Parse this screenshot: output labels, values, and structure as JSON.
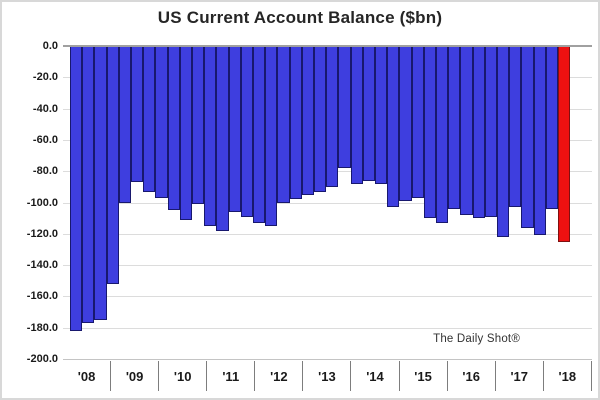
{
  "chart_data": {
    "type": "bar",
    "title": "US Current Account Balance ($bn)",
    "unit": "$bn",
    "annotation": "The Daily Shot®",
    "x_year_labels": [
      "'08",
      "'09",
      "'10",
      "'11",
      "'12",
      "'13",
      "'14",
      "'15",
      "'16",
      "'17",
      "'18"
    ],
    "categories": [
      "2008 Q1",
      "2008 Q2",
      "2008 Q3",
      "2008 Q4",
      "2009 Q1",
      "2009 Q2",
      "2009 Q3",
      "2009 Q4",
      "2010 Q1",
      "2010 Q2",
      "2010 Q3",
      "2010 Q4",
      "2011 Q1",
      "2011 Q2",
      "2011 Q3",
      "2011 Q4",
      "2012 Q1",
      "2012 Q2",
      "2012 Q3",
      "2012 Q4",
      "2013 Q1",
      "2013 Q2",
      "2013 Q3",
      "2013 Q4",
      "2014 Q1",
      "2014 Q2",
      "2014 Q3",
      "2014 Q4",
      "2015 Q1",
      "2015 Q2",
      "2015 Q3",
      "2015 Q4",
      "2016 Q1",
      "2016 Q2",
      "2016 Q3",
      "2016 Q4",
      "2017 Q1",
      "2017 Q2",
      "2017 Q3",
      "2017 Q4",
      "2018 Q1"
    ],
    "values": [
      -182,
      -177,
      -175,
      -152,
      -100,
      -87,
      -93,
      -97,
      -105,
      -111,
      -101,
      -115,
      -118,
      -106,
      -109,
      -113,
      -115,
      -100,
      -98,
      -95,
      -93,
      -90,
      -78,
      -88,
      -86,
      -88,
      -103,
      -99,
      -97,
      -110,
      -113,
      -104,
      -108,
      -110,
      -109,
      -122,
      -103,
      -116,
      -121,
      -104,
      -125
    ],
    "highlight_last_bar": true,
    "ylim": [
      -200,
      0
    ],
    "y_ticks": [
      "0.0",
      "-20.0",
      "-40.0",
      "-60.0",
      "-80.0",
      "-100.0",
      "-120.0",
      "-140.0",
      "-160.0",
      "-180.0",
      "-200.0"
    ],
    "grid": true,
    "legend_position": "none",
    "colors": {
      "bar_blue": "#3e3edf",
      "bar_blue_border": "#18186e",
      "bar_red": "#ed1111",
      "bar_red_border": "#7e1010",
      "zero_line": "#a0a0a0",
      "gridline": "#dcdcdc",
      "title_text": "#262626",
      "axis_text": "#1a1a1a"
    }
  }
}
